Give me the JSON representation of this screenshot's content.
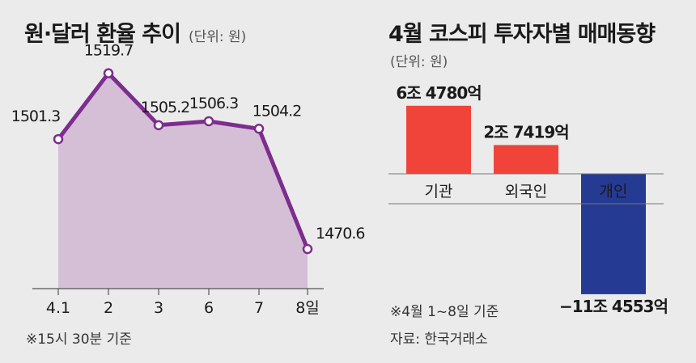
{
  "chart_data": [
    {
      "type": "area",
      "title": "원·달러 환율 추이",
      "unit": "(단위: 원)",
      "categories": [
        "4.1",
        "2",
        "3",
        "6",
        "7",
        "8일"
      ],
      "values": [
        1501.3,
        1519.7,
        1505.2,
        1506.3,
        1504.2,
        1470.6
      ],
      "data_labels": [
        "1501.3",
        "1519.7",
        "1505.2",
        "1506.3",
        "1504.2",
        "1470.6"
      ],
      "ylim": [
        1460,
        1530
      ],
      "grid": false,
      "note": "※15시 30분 기준",
      "colors": {
        "line": "#7d2d8e",
        "fill": "#d4bfd7",
        "marker_fill": "#ffffff"
      }
    },
    {
      "type": "bar",
      "title": "4월 코스피 투자자별 매매동향",
      "unit": "(단위: 원)",
      "categories": [
        "기관",
        "외국인",
        "개인"
      ],
      "values": [
        64780,
        27419,
        -114553
      ],
      "value_unit": "억 원",
      "data_labels": [
        "6조 4780억",
        "2조 7419억",
        "−11조 4553억"
      ],
      "grid": false,
      "notes": [
        "※4월 1~8일 기준",
        "자료: 한국거래소"
      ],
      "colors": {
        "positive": "#f0443a",
        "negative": "#253a92"
      }
    }
  ]
}
